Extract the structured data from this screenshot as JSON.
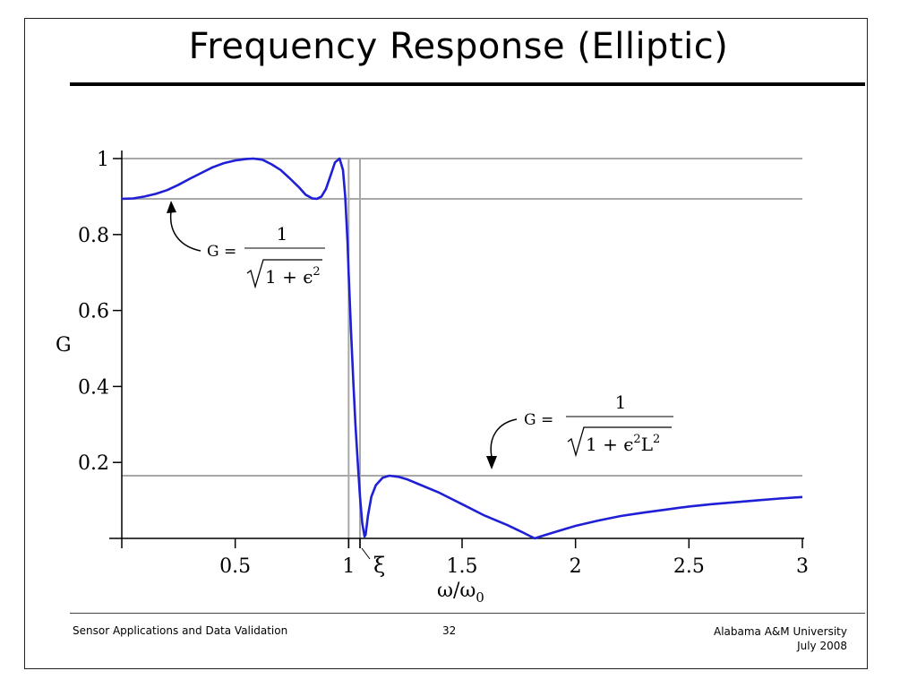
{
  "slide": {
    "title": "Frequency Response (Elliptic)",
    "footer_left": "Sensor Applications and Data Validation",
    "page_number": "32",
    "footer_right_line1": "Alabama A&M University",
    "footer_right_line2": "July 2008"
  },
  "colors": {
    "curve": "#1f1fd6",
    "reference_lines": "#a8a8a8",
    "axes": "#000000"
  },
  "chart_data": {
    "type": "line",
    "title": "",
    "xlabel_text": "ω/ω",
    "xlabel_sub": "0",
    "ylabel": "G",
    "xlim": [
      0,
      3.0
    ],
    "ylim": [
      0,
      1.02
    ],
    "x_ticks": [
      0.5,
      1,
      1.5,
      2,
      2.5,
      3
    ],
    "x_tick_labels": [
      "0.5",
      "1",
      "1.5",
      "2",
      "2.5",
      "3"
    ],
    "y_ticks": [
      0.2,
      0.4,
      0.6,
      0.8,
      1.0
    ],
    "y_tick_labels": [
      "0.2",
      "0.4",
      "0.6",
      "0.8",
      "1"
    ],
    "extra_x_label": "ξ",
    "xi_value": 1.05,
    "grid": false,
    "reference_lines": {
      "horizontal": [
        1.0,
        0.894,
        0.165
      ],
      "vertical": [
        1.0,
        1.05
      ]
    },
    "series": [
      {
        "x": [
          0,
          0.05,
          0.1,
          0.15,
          0.2,
          0.25,
          0.3,
          0.35,
          0.4,
          0.45,
          0.5,
          0.55,
          0.58,
          0.62,
          0.66,
          0.7,
          0.74,
          0.78,
          0.81,
          0.84,
          0.86,
          0.88,
          0.9,
          0.92,
          0.94,
          0.96,
          0.975,
          0.985,
          0.995,
          1.0,
          1.01,
          1.02,
          1.03,
          1.04,
          1.05,
          1.06,
          1.07,
          1.075,
          1.085,
          1.1,
          1.12,
          1.15,
          1.18,
          1.22,
          1.26,
          1.3,
          1.4,
          1.5,
          1.6,
          1.7,
          1.76,
          1.8,
          1.82,
          1.85,
          1.9,
          2.0,
          2.1,
          2.2,
          2.3,
          2.4,
          2.5,
          2.6,
          2.7,
          2.8,
          2.9,
          3.0
        ],
        "y": [
          0.894,
          0.895,
          0.9,
          0.907,
          0.917,
          0.931,
          0.947,
          0.962,
          0.977,
          0.988,
          0.995,
          0.999,
          1.0,
          0.997,
          0.985,
          0.97,
          0.948,
          0.925,
          0.905,
          0.895,
          0.894,
          0.9,
          0.92,
          0.955,
          0.99,
          1.0,
          0.97,
          0.9,
          0.78,
          0.7,
          0.55,
          0.42,
          0.3,
          0.2,
          0.11,
          0.04,
          0.005,
          0.01,
          0.06,
          0.11,
          0.14,
          0.16,
          0.165,
          0.162,
          0.155,
          0.145,
          0.12,
          0.09,
          0.06,
          0.035,
          0.018,
          0.006,
          0.0,
          0.006,
          0.015,
          0.033,
          0.047,
          0.059,
          0.068,
          0.076,
          0.084,
          0.09,
          0.095,
          0.1,
          0.105,
          0.109
        ]
      }
    ],
    "annotations": [
      {
        "lhs": "G =",
        "numerator": "1",
        "denominator_inner": "1 + ϵ",
        "exp": "2"
      },
      {
        "lhs": "G =",
        "numerator": "1",
        "denominator_inner": "1 + ϵ",
        "exp1": "2",
        "mid": "L",
        "exp2": "2"
      }
    ]
  }
}
